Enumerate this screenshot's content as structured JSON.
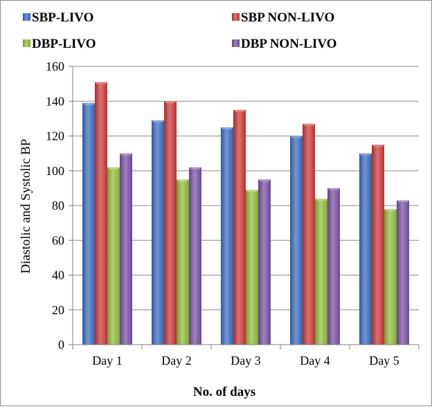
{
  "chart_data": {
    "type": "bar",
    "title": "",
    "xlabel": "No. of days",
    "ylabel": "Diastolic and Systolic BP",
    "categories": [
      "Day 1",
      "Day 2",
      "Day 3",
      "Day 4",
      "Day 5"
    ],
    "ylim": [
      0,
      160
    ],
    "yticks": [
      0,
      20,
      40,
      60,
      80,
      100,
      120,
      140,
      160
    ],
    "grid": true,
    "legend_position": "top",
    "series": [
      {
        "name": "SBP-LIVO",
        "color": "#3b6fc4",
        "values": [
          139,
          129,
          125,
          120,
          110
        ]
      },
      {
        "name": "SBP NON-LIVO",
        "color": "#d03a38",
        "values": [
          151,
          140,
          135,
          127,
          115
        ]
      },
      {
        "name": "DBP-LIVO",
        "color": "#93c13c",
        "values": [
          102,
          95,
          89,
          84,
          78
        ]
      },
      {
        "name": "DBP NON-LIVO",
        "color": "#7a53a6",
        "values": [
          110,
          102,
          95,
          90,
          83
        ]
      }
    ]
  }
}
